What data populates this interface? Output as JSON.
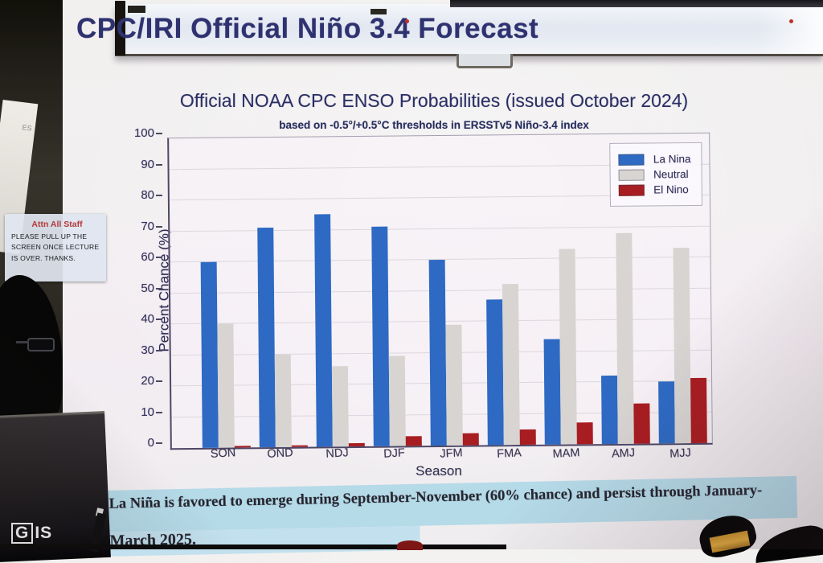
{
  "scene": {
    "projected_title": "CPC/IRI Official Niño 3.4 Forecast",
    "poster_text": "ES",
    "sticky_note": {
      "title": "Attn All Staff",
      "body": "PLEASE PULL UP THE SCREEN ONCE LECTURE IS OVER. THANKS."
    },
    "gis_logo": {
      "g": "G",
      "is": "IS"
    }
  },
  "caption": {
    "line1": "La Niña is favored to emerge during September-November (60% chance) and persist through January-",
    "line2": "March 2025."
  },
  "chart_data": {
    "type": "bar",
    "title": "Official NOAA CPC ENSO Probabilities (issued October 2024)",
    "subtitle": "based on -0.5°/+0.5°C thresholds in ERSSTv5 Niño-3.4 index",
    "xlabel": "Season",
    "ylabel": "Percent Chance (%)",
    "ylim": [
      0,
      100
    ],
    "yticks": [
      0,
      10,
      20,
      30,
      40,
      50,
      60,
      70,
      80,
      90,
      100
    ],
    "grid": true,
    "legend_position": "upper right",
    "categories": [
      "SON",
      "OND",
      "NDJ",
      "DJF",
      "JFM",
      "FMA",
      "MAM",
      "AMJ",
      "MJJ"
    ],
    "series": [
      {
        "name": "La Nina",
        "color": "#2e6ac4",
        "values": [
          60,
          71,
          75,
          71,
          60,
          47,
          34,
          22,
          20
        ]
      },
      {
        "name": "Neutral",
        "color": "#d7d4d2",
        "values": [
          40,
          30,
          26,
          29,
          39,
          52,
          63,
          68,
          63
        ]
      },
      {
        "name": "El Nino",
        "color": "#a81d21",
        "values": [
          0.5,
          0.5,
          1,
          3,
          4,
          5,
          7,
          13,
          21
        ]
      }
    ]
  },
  "colors": {
    "la_nina": "#2e6ac4",
    "neutral": "#d7d4d2",
    "el_nino": "#a81d21",
    "caption_band": "#b5dae8",
    "title_text": "#2e3270"
  }
}
